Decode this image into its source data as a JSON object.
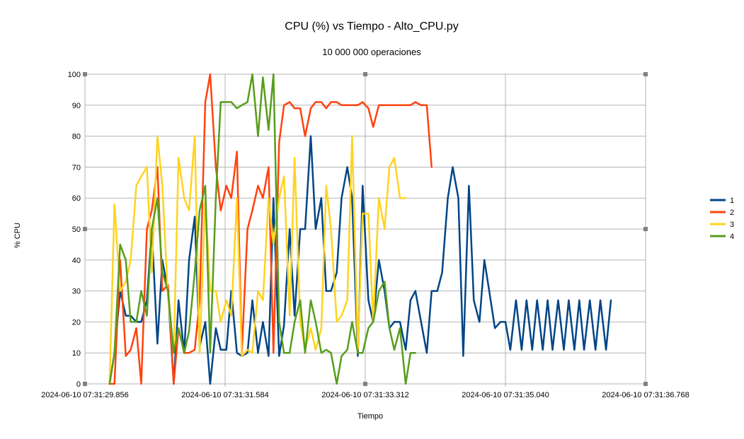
{
  "chart_data": {
    "type": "line",
    "title": "CPU (%) vs Tiempo - Alto_CPU.py",
    "subtitle": "10 000 000 operaciones",
    "xlabel": "Tiempo",
    "ylabel": "% CPU",
    "x_tick_labels": [
      "2024-06-10 07:31:29.856",
      "2024-06-10 07:31:31.584",
      "2024-06-10 07:31:33.312",
      "2024-06-10 07:31:35.040",
      "2024-06-10 07:31:36.768"
    ],
    "xlim_seconds": [
      29.856,
      36.768
    ],
    "ylim": [
      0,
      100
    ],
    "y_ticks": [
      0,
      10,
      20,
      30,
      40,
      50,
      60,
      70,
      80,
      90,
      100
    ],
    "grid": true,
    "legend_position": "right",
    "series": [
      {
        "name": "1",
        "color": "#004586",
        "x": [
          30.16,
          30.22,
          30.29,
          30.36,
          30.42,
          30.49,
          30.55,
          30.62,
          30.68,
          30.75,
          30.81,
          30.88,
          30.95,
          31.01,
          31.08,
          31.14,
          31.21,
          31.27,
          31.34,
          31.4,
          31.47,
          31.53,
          31.6,
          31.66,
          31.73,
          31.79,
          31.86,
          31.92,
          31.99,
          32.05,
          32.12,
          32.18,
          32.25,
          32.31,
          32.38,
          32.44,
          32.51,
          32.57,
          32.64,
          32.7,
          32.77,
          32.83,
          32.89,
          32.96,
          33.02,
          33.09,
          33.15,
          33.22,
          33.28,
          33.35,
          33.41,
          33.48,
          33.55,
          33.61,
          33.67,
          33.74,
          33.81,
          33.87,
          33.93,
          34.0,
          34.07,
          34.13,
          34.2,
          34.26,
          34.33,
          34.39,
          34.46,
          34.52,
          34.59,
          34.65,
          34.72,
          34.78,
          34.84,
          34.91,
          34.98,
          35.04,
          35.1,
          35.17,
          35.24,
          35.3,
          35.37,
          35.43,
          35.5,
          35.56,
          35.62,
          35.69,
          35.76,
          35.82,
          35.89,
          35.95,
          36.01,
          36.08,
          36.15,
          36.21,
          36.28,
          36.34
        ],
        "values": [
          0,
          10,
          30,
          22,
          22,
          20,
          20,
          27,
          50,
          13,
          40,
          30,
          0,
          27,
          10,
          40,
          54,
          12,
          20,
          0,
          18,
          11,
          11,
          30,
          10,
          9,
          10,
          27,
          10,
          20,
          9,
          60,
          9,
          19,
          50,
          22,
          50,
          50,
          80,
          50,
          60,
          30,
          30,
          36,
          60,
          70,
          60,
          9,
          64,
          27,
          20,
          40,
          30,
          18,
          20,
          20,
          11,
          27,
          30,
          20,
          10,
          30,
          30,
          36,
          60,
          70,
          60,
          9,
          64,
          27,
          20,
          40,
          30,
          18,
          20,
          20,
          11,
          27,
          11,
          27,
          11,
          27,
          11,
          27,
          11,
          27,
          11,
          27,
          11,
          27,
          11,
          27,
          11,
          27,
          11,
          27
        ]
      },
      {
        "name": "2",
        "color": "#ff420e",
        "x": [
          30.16,
          30.22,
          30.29,
          30.36,
          30.42,
          30.49,
          30.55,
          30.62,
          30.68,
          30.75,
          30.81,
          30.88,
          30.95,
          31.01,
          31.08,
          31.14,
          31.21,
          31.27,
          31.34,
          31.4,
          31.47,
          31.53,
          31.6,
          31.66,
          31.73,
          31.79,
          31.86,
          31.92,
          31.99,
          32.05,
          32.12,
          32.18,
          32.25,
          32.31,
          32.38,
          32.44,
          32.51,
          32.57,
          32.64,
          32.7,
          32.77,
          32.83,
          32.89,
          32.96,
          33.02,
          33.09,
          33.15,
          33.22,
          33.28,
          33.35,
          33.41,
          33.48,
          33.55,
          33.61,
          33.67,
          33.74
        ],
        "values": [
          0,
          0,
          40,
          9,
          11,
          18,
          0,
          50,
          56,
          70,
          30,
          32,
          0,
          18,
          10,
          10,
          11,
          27,
          91,
          100,
          70,
          56,
          64,
          60,
          75,
          10,
          50,
          56,
          64,
          60,
          70,
          10,
          78,
          90,
          91,
          89,
          89,
          80,
          89,
          91,
          91,
          89,
          91,
          91,
          90,
          90,
          90,
          90,
          91,
          89,
          83,
          90,
          90,
          90,
          90,
          90
        ],
        "tail_x": [
          33.74,
          33.81,
          33.87,
          33.93,
          34.0,
          34.07,
          34.13
        ],
        "tail_values": [
          90,
          90,
          90,
          91,
          90,
          90,
          70
        ]
      },
      {
        "name": "3",
        "color": "#ffd320",
        "values": [
          0,
          58,
          30,
          33,
          40,
          64,
          67,
          70,
          36,
          80,
          64,
          28,
          10,
          73,
          60,
          56,
          80,
          10,
          60,
          30,
          30,
          20,
          27,
          22,
          60,
          9,
          11,
          10,
          30,
          27,
          60,
          45,
          60,
          67,
          22,
          73,
          20,
          11,
          18,
          11,
          18,
          64,
          50,
          20,
          22,
          27,
          80,
          11,
          55,
          55,
          20,
          60,
          50,
          70,
          73,
          60,
          60
        ]
      },
      {
        "name": "4",
        "color": "#579d1c",
        "values": [
          0,
          10,
          45,
          40,
          20,
          20,
          30,
          22,
          50,
          60,
          36,
          30,
          10,
          18,
          10,
          17,
          36,
          56,
          64,
          10,
          60,
          91,
          91,
          91,
          89,
          90,
          91,
          100,
          80,
          99,
          82,
          100,
          20,
          10,
          10,
          20,
          27,
          10,
          27,
          20,
          10,
          11,
          10,
          0,
          9,
          11,
          20,
          10,
          10,
          18,
          20,
          30,
          33,
          18,
          11,
          18,
          0,
          10,
          10
        ]
      }
    ]
  }
}
